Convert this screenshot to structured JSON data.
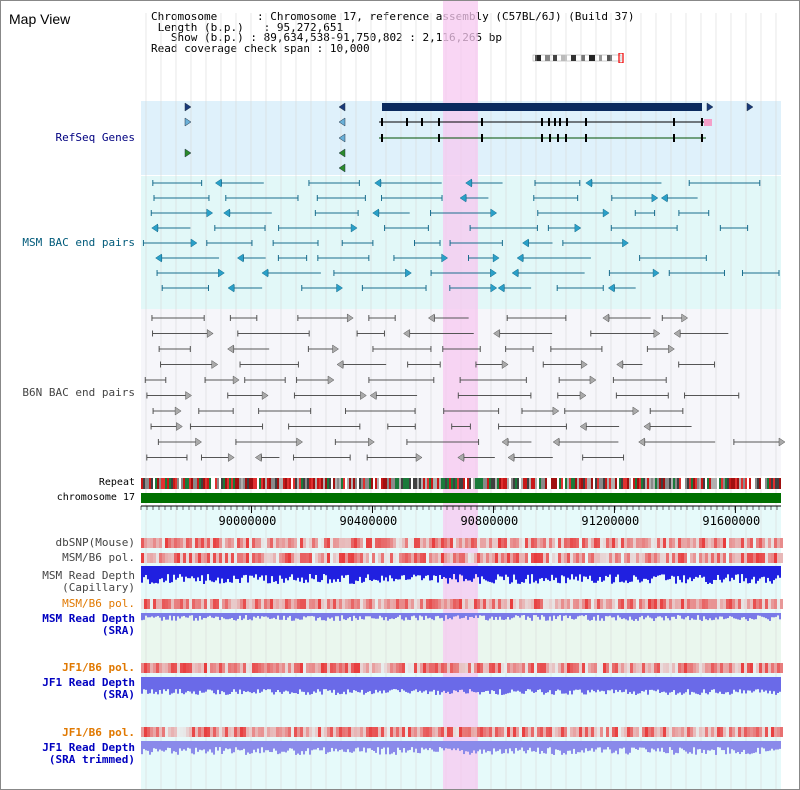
{
  "header": {
    "title": "Map View",
    "chromosome_label": "Chromosome",
    "chromosome_value": "Chromosome 17, reference assembly (C57BL/6J) (Build 37)",
    "length_label": "Length (b.p.)",
    "length_value": "95,272,651",
    "show_label": "Show (b.p.)",
    "show_value": "89,634,538-91,750,802 : 2,116,265 bp",
    "coverage_label": "Read coverage check span",
    "coverage_value": "10,000"
  },
  "tracks": {
    "refseq": "RefSeq Genes",
    "msm_bac": "MSM BAC end pairs",
    "b6n_bac": "B6N BAC end pairs",
    "repeat": "Repeat",
    "chromosome": "chromosome 17",
    "dbsnp": "dbSNP(Mouse)",
    "msm_b6_pol_1": "MSM/B6 pol.",
    "msm_depth_cap_1": "MSM Read Depth",
    "msm_depth_cap_2": "(Capillary)",
    "msm_b6_pol_2": "MSM/B6 pol.",
    "msm_depth_sra_1": "MSM Read Depth",
    "msm_depth_sra_2": "(SRA)",
    "jf1_b6_pol_1": "JF1/B6 pol.",
    "jf1_depth_sra_1": "JF1 Read Depth",
    "jf1_depth_sra_2": "(SRA)",
    "jf1_b6_pol_2": "JF1/B6 pol.",
    "jf1_depth_trim_1": "JF1 Read Depth",
    "jf1_depth_trim_2": "(SRA trimmed)"
  },
  "axis": {
    "ticks": [
      "90000000",
      "90400000",
      "90800000",
      "91200000",
      "91600000"
    ],
    "range_bp": [
      89634538,
      91750802
    ]
  },
  "colors": {
    "refseq_bg": "#dff1fb",
    "msm_bg": "#e2f8f8",
    "b6n_bg": "#f6f6fa",
    "highlight": "#f7c8f0",
    "gene_dark": "#0a2a5e",
    "msm_line": "#1a6e8e",
    "b6n_line": "#555555",
    "chromosome_bar": "#007000",
    "depth_blue": "#2020e0",
    "pol_red": "#e83030"
  }
}
